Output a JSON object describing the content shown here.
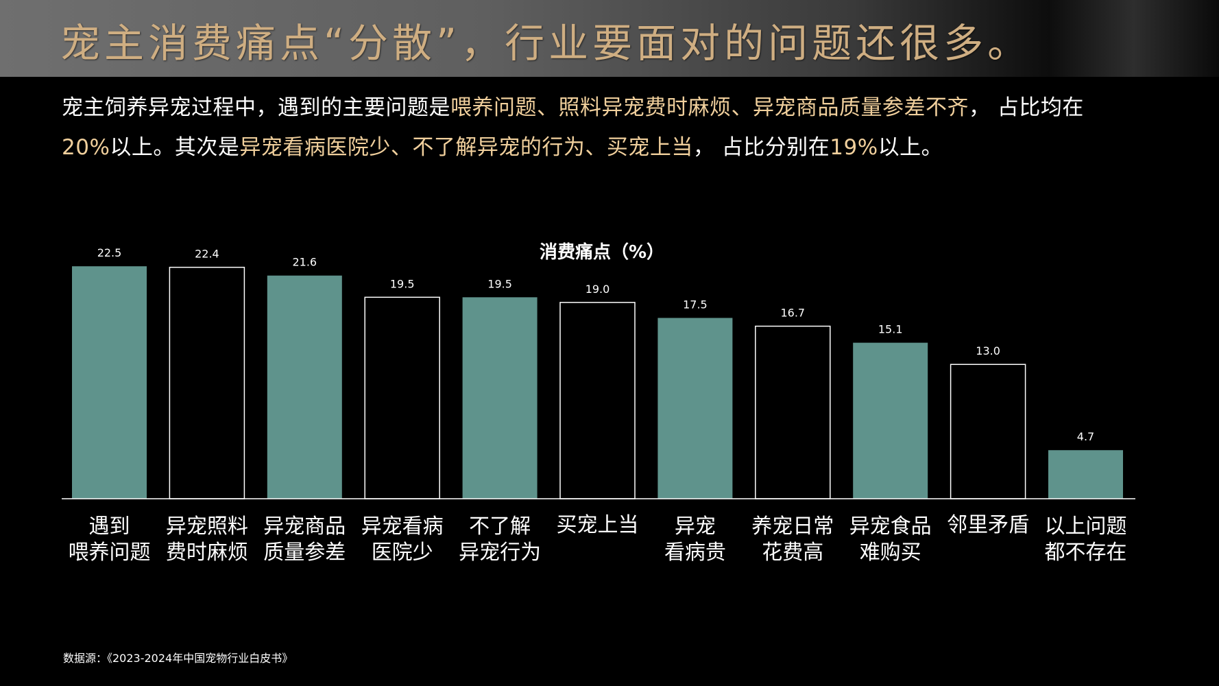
{
  "header": {
    "title": "宠主消费痛点“分散”，行业要面对的问题还很多。"
  },
  "summary": {
    "p1": "宠主饲养异宠过程中，遇到的主要问题是",
    "h1": "喂养问题、照料异宠费时麻烦、异宠商品质量参差不齐",
    "p2": "， 占比均在",
    "h2": "20%",
    "p3": "以上。其次是",
    "h3": "异宠看病医院少、不了解异宠的行为、买宠上当",
    "p4": "， 占比分别在",
    "h4": "19%",
    "p5": "以上。"
  },
  "source": "数据源：《2023-2024年中国宠物行业白皮书》",
  "colors": {
    "title": "#cfae82",
    "highlight": "#f0cf9c",
    "bar_fill": "#5f938c",
    "bar_outline": "#ffffff",
    "axis": "#ffffff"
  },
  "chart_data": {
    "type": "bar",
    "title": "消费痛点（%）",
    "xlabel": "",
    "ylabel": "",
    "ylim": [
      0,
      24
    ],
    "grid": false,
    "legend": "none",
    "categories": [
      [
        "遇到",
        "喂养问题"
      ],
      [
        "异宠照料",
        "费时麻烦"
      ],
      [
        "异宠商品",
        "质量参差"
      ],
      [
        "异宠看病",
        "医院少"
      ],
      [
        "不了解",
        "异宠行为"
      ],
      [
        "买宠上当"
      ],
      [
        "异宠",
        "看病贵"
      ],
      [
        "养宠日常",
        "花费高"
      ],
      [
        "异宠食品",
        "难购买"
      ],
      [
        "邻里矛盾"
      ],
      [
        "以上问题",
        "都不存在"
      ]
    ],
    "values": [
      22.5,
      22.4,
      21.6,
      19.5,
      19.5,
      19.0,
      17.5,
      16.7,
      15.1,
      13.0,
      4.7
    ],
    "value_labels": [
      "22.5",
      "22.4",
      "21.6",
      "19.5",
      "19.5",
      "19.0",
      "17.5",
      "16.7",
      "15.1",
      "13.0",
      "4.7"
    ],
    "styles": [
      "filled",
      "outline",
      "filled",
      "outline",
      "filled",
      "outline",
      "filled",
      "outline",
      "filled",
      "outline",
      "filled"
    ]
  }
}
